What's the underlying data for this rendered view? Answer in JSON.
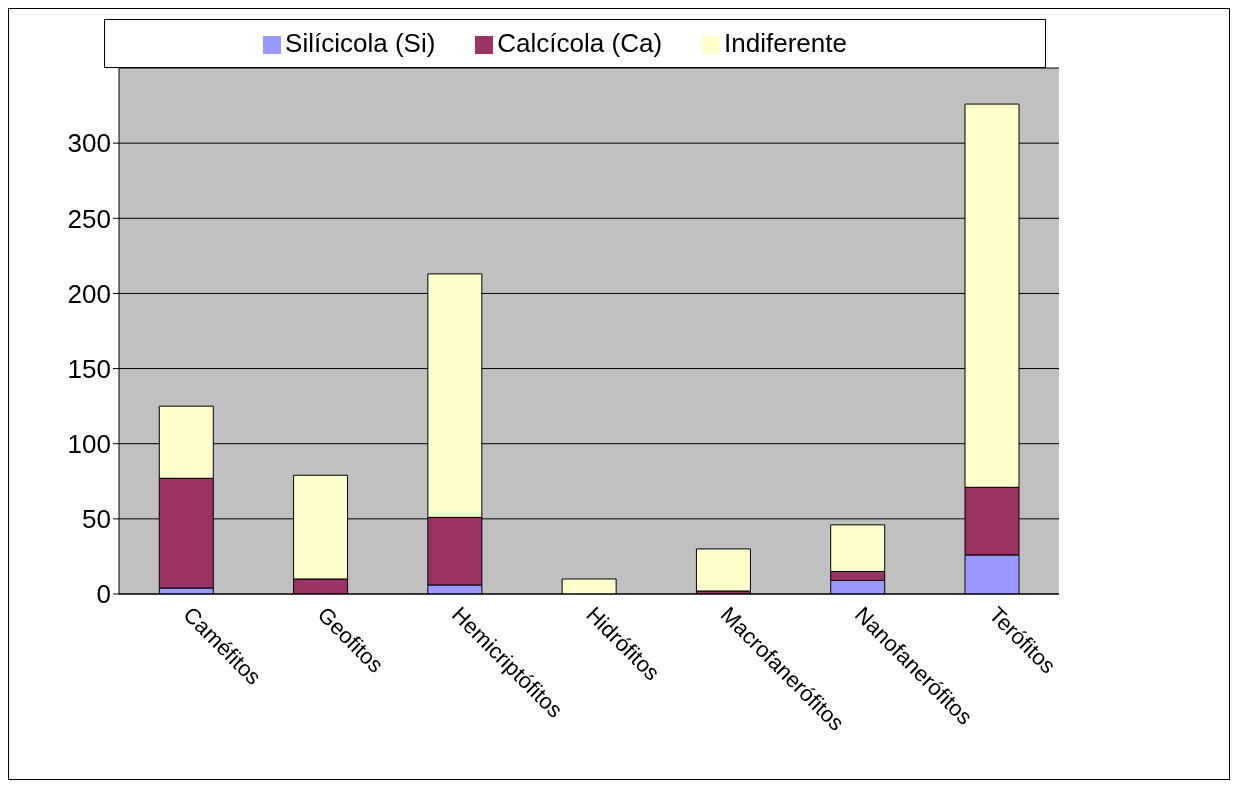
{
  "chart_data": {
    "type": "bar",
    "stacked": true,
    "categories": [
      "Caméfitos",
      "Geofitos",
      "Hemicriptófitos",
      "Hidrófitos",
      "Macrofanerófitos",
      "Nanofanerófitos",
      "Terófitos"
    ],
    "series": [
      {
        "name": "Silícicola (Si)",
        "color": "#9999ff",
        "values": [
          4,
          null,
          6,
          0,
          null,
          9,
          26
        ]
      },
      {
        "name": "Calcícola (Ca)",
        "color": "#993366",
        "values": [
          73,
          10,
          45,
          0,
          2,
          6,
          45
        ]
      },
      {
        "name": "Indiferente",
        "color": "#ffffcc",
        "values": [
          48,
          69,
          162,
          10,
          28,
          31,
          255
        ]
      }
    ],
    "ylim": [
      0,
      350
    ],
    "yticks": [
      0,
      50,
      100,
      150,
      200,
      250,
      300
    ],
    "grid": "y",
    "legend": "top"
  }
}
